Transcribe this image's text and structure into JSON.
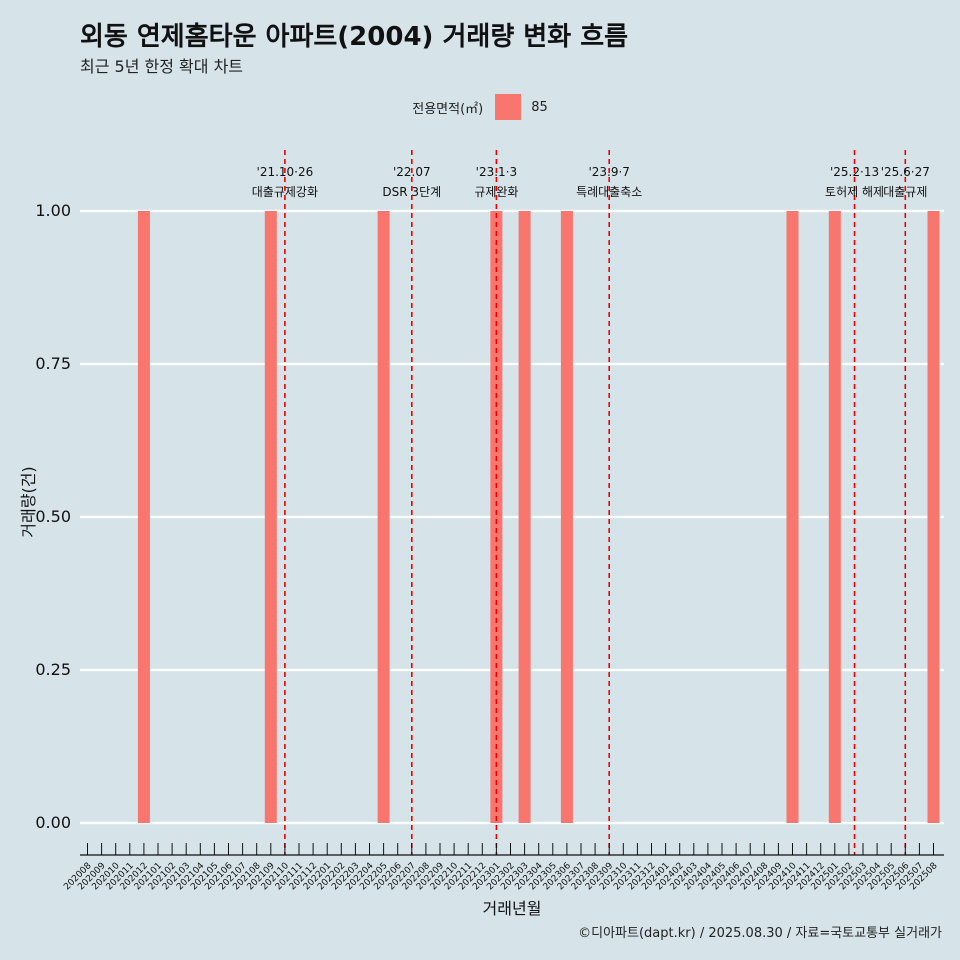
{
  "title": "외동 연제홈타운 아파트(2004) 거래량 변화 흐름",
  "subtitle": "최근 5년 한정 확대 차트",
  "legend": {
    "title": "전용면적(㎡)",
    "item": "85",
    "color": "#f8766d"
  },
  "caption": "©디아파트(dapt.kr) / 2025.08.30 / 자료=국토교통부 실거래가",
  "chart_data": {
    "type": "bar",
    "title": "외동 연제홈타운 아파트(2004) 거래량 변화 흐름",
    "subtitle": "최근 5년 한정 확대 차트",
    "xlabel": "거래년월",
    "ylabel": "거래량(건)",
    "ylim": [
      0,
      1
    ],
    "yticks": [
      "0.00",
      "0.25",
      "0.50",
      "0.75",
      "1.00"
    ],
    "legend_position": "top",
    "grid": true,
    "categories": [
      "202008",
      "202009",
      "202010",
      "202011",
      "202012",
      "202101",
      "202102",
      "202103",
      "202104",
      "202105",
      "202106",
      "202107",
      "202108",
      "202109",
      "202110",
      "202111",
      "202112",
      "202201",
      "202202",
      "202203",
      "202204",
      "202205",
      "202206",
      "202207",
      "202208",
      "202209",
      "202210",
      "202211",
      "202212",
      "202301",
      "202302",
      "202303",
      "202304",
      "202305",
      "202306",
      "202307",
      "202308",
      "202309",
      "202310",
      "202311",
      "202312",
      "202401",
      "202402",
      "202403",
      "202404",
      "202405",
      "202406",
      "202407",
      "202408",
      "202409",
      "202410",
      "202411",
      "202412",
      "202501",
      "202502",
      "202503",
      "202504",
      "202505",
      "202506",
      "202507",
      "202508"
    ],
    "series": [
      {
        "name": "85",
        "color": "#f8766d",
        "points": [
          {
            "x": "202012",
            "y": 1
          },
          {
            "x": "202109",
            "y": 1
          },
          {
            "x": "202205",
            "y": 1
          },
          {
            "x": "202301",
            "y": 1
          },
          {
            "x": "202303",
            "y": 1
          },
          {
            "x": "202306",
            "y": 1
          },
          {
            "x": "202410",
            "y": 1
          },
          {
            "x": "202501",
            "y": 1
          },
          {
            "x": "202508",
            "y": 1
          }
        ]
      }
    ],
    "annotations": [
      {
        "x": "202110",
        "line1": "'21.10·26",
        "line2": "대출규제강화",
        "offset": 0
      },
      {
        "x": "202207",
        "line1": "'22.07",
        "line2": "DSR 3단계",
        "offset": 0
      },
      {
        "x": "202301",
        "line1": "'23.1·3",
        "line2": "규제완화",
        "offset": 0
      },
      {
        "x": "202309",
        "line1": "'23.9·7",
        "line2": "특례대출축소",
        "offset": 0
      },
      {
        "x": "202502",
        "line1": "'25.2·13",
        "line2": "토허제 해제",
        "offset": 0.4
      },
      {
        "x": "202506",
        "line1": "'25.6·27",
        "line2": "대출규제",
        "offset": 0
      }
    ]
  }
}
